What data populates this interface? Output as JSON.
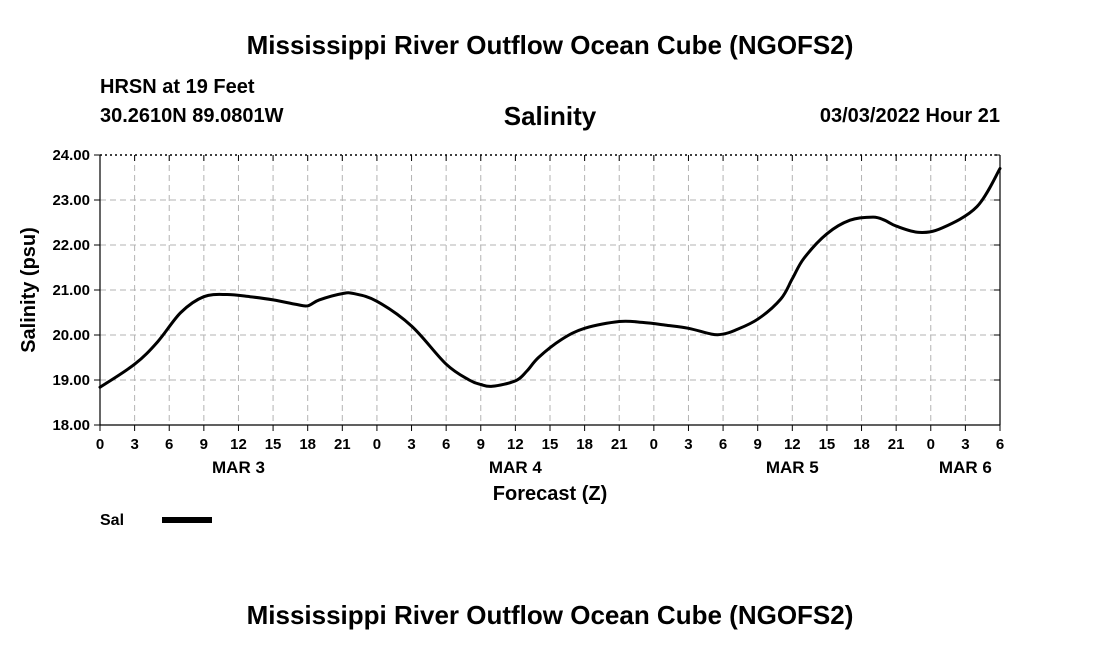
{
  "header": {
    "main_title": "Mississippi River Outflow Ocean Cube (NGOFS2)",
    "station": "HRSN at 19 Feet",
    "coords": "30.2610N  89.0801W",
    "chart_title": "Salinity",
    "datetime": "03/03/2022 Hour 21"
  },
  "footer": {
    "title": "Mississippi River Outflow Ocean Cube (NGOFS2)"
  },
  "chart_data": {
    "type": "line",
    "title": "Salinity",
    "xlabel": "Forecast (Z)",
    "ylabel": "Salinity (psu)",
    "ylim": [
      18,
      24
    ],
    "y_ticks": [
      "18.00",
      "19.00",
      "20.00",
      "21.00",
      "22.00",
      "23.00",
      "24.00"
    ],
    "xlim": [
      0,
      78
    ],
    "x_ticks": [
      "0",
      "3",
      "6",
      "9",
      "12",
      "15",
      "18",
      "21",
      "0",
      "3",
      "6",
      "9",
      "12",
      "15",
      "18",
      "21",
      "0",
      "3",
      "6",
      "9",
      "12",
      "15",
      "18",
      "21",
      "0",
      "3",
      "6"
    ],
    "date_labels": [
      {
        "label": "MAR 3",
        "hour": 12
      },
      {
        "label": "MAR 4",
        "hour": 36
      },
      {
        "label": "MAR 5",
        "hour": 60
      },
      {
        "label": "MAR 6",
        "hour": 75
      }
    ],
    "grid": true,
    "series": [
      {
        "name": "Sal",
        "x": [
          0,
          3,
          5,
          7,
          9,
          11,
          13,
          15,
          17,
          18,
          19,
          21,
          22,
          24,
          27,
          30,
          32,
          33,
          34,
          36,
          37,
          38,
          40,
          42,
          45,
          47,
          49,
          51,
          53,
          54,
          55,
          57,
          59,
          60,
          61,
          63,
          65,
          67,
          68,
          69,
          71,
          73,
          76,
          78
        ],
        "y": [
          18.84,
          19.35,
          19.85,
          20.5,
          20.85,
          20.9,
          20.85,
          20.78,
          20.68,
          20.65,
          20.78,
          20.92,
          20.92,
          20.75,
          20.2,
          19.35,
          19.0,
          18.9,
          18.86,
          18.98,
          19.2,
          19.5,
          19.9,
          20.15,
          20.3,
          20.28,
          20.22,
          20.15,
          20.02,
          20.02,
          20.1,
          20.35,
          20.8,
          21.25,
          21.7,
          22.25,
          22.55,
          22.62,
          22.55,
          22.42,
          22.28,
          22.38,
          22.85,
          23.7
        ]
      }
    ],
    "legend": {
      "label": "Sal",
      "position": "bottom-left"
    }
  }
}
